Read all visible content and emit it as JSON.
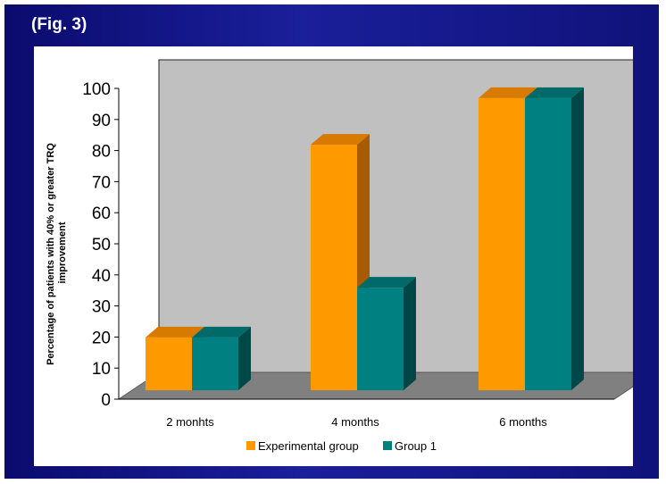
{
  "figure_label": "(Fig. 3)",
  "colors": {
    "series_1": "#ff9900",
    "series_1_top": "#d97a00",
    "series_1_side": "#a85b00",
    "series_2": "#008080",
    "series_2_top": "#006a6a",
    "series_2_side": "#004848",
    "back_wall": "#c0c0c0",
    "floor": "#808080"
  },
  "chart_data": {
    "type": "bar",
    "categories": [
      "2 monhts",
      "4 months",
      "6 months"
    ],
    "series": [
      {
        "name": "Experimental group",
        "values": [
          17,
          79,
          94
        ]
      },
      {
        "name": "Group 1",
        "values": [
          17,
          33,
          94
        ]
      }
    ],
    "ylabel_lines": [
      "Percentage of patients with 40% or greater TRQ",
      "improvement"
    ],
    "ylim": [
      0,
      100
    ],
    "yticks": [
      0,
      10,
      20,
      30,
      40,
      50,
      60,
      70,
      80,
      90,
      100
    ],
    "grid": false,
    "legend": "bottom",
    "three_d": true
  }
}
